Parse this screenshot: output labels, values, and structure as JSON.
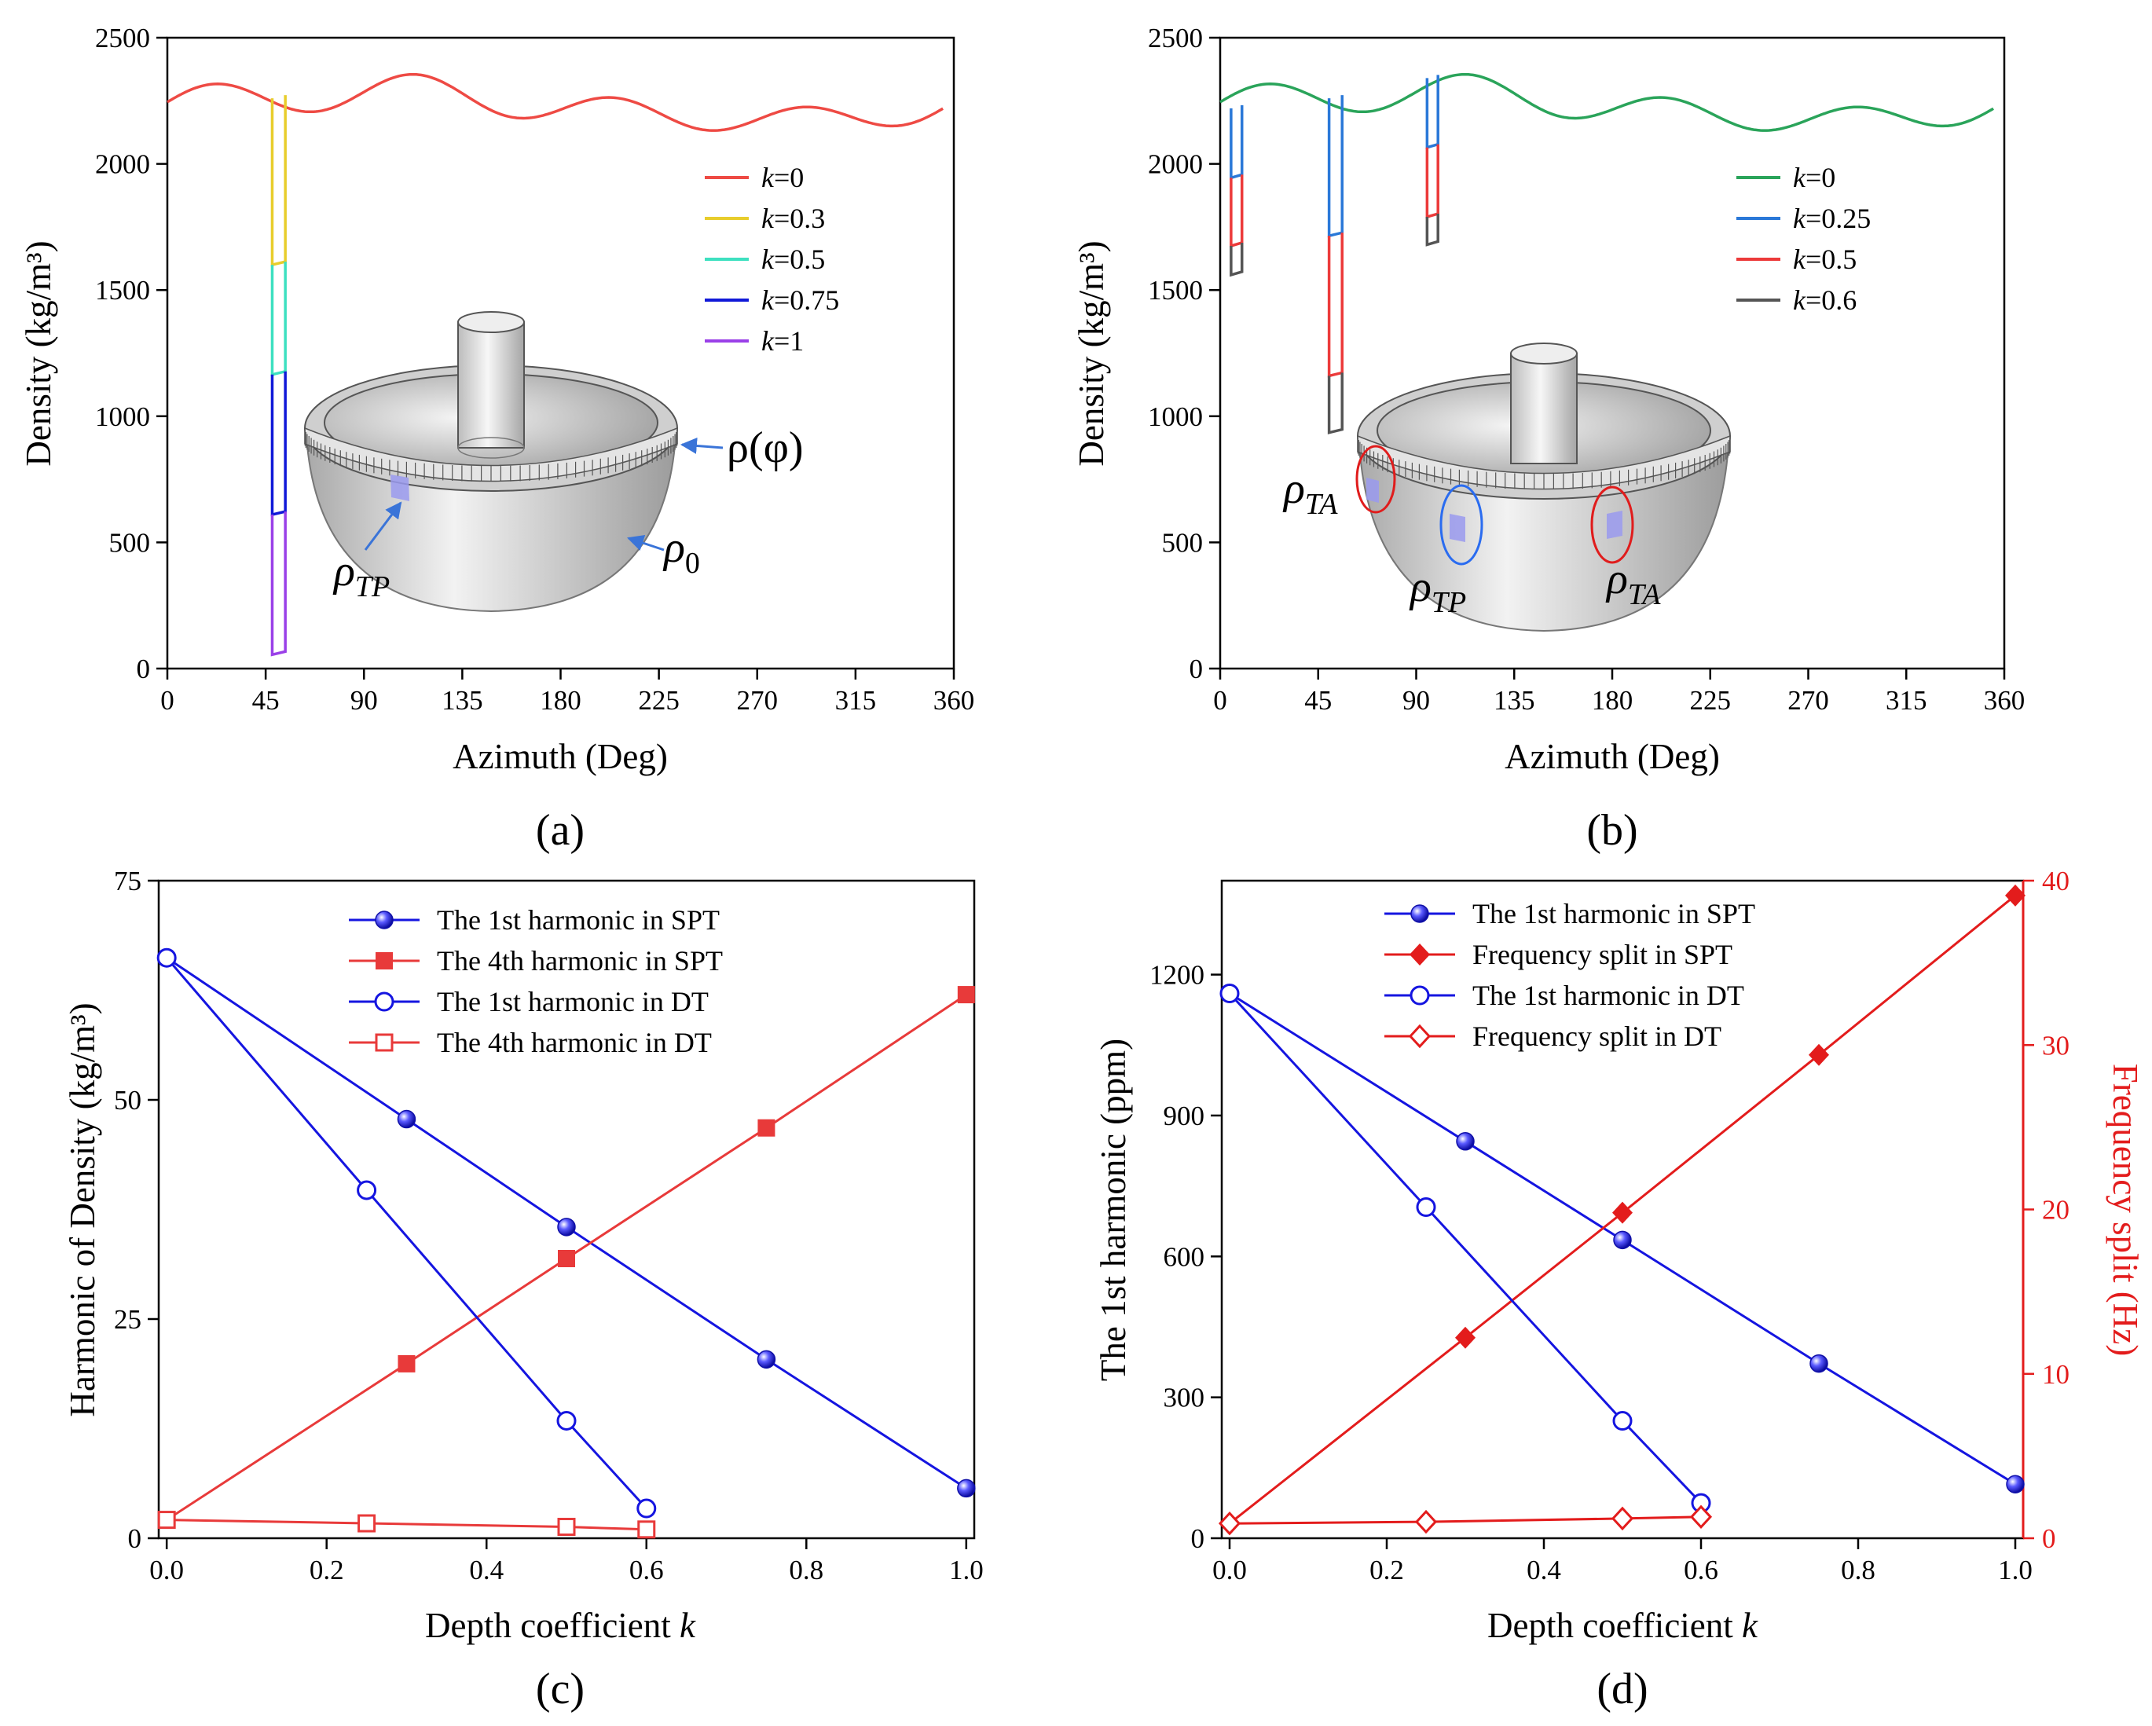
{
  "figure": {
    "captions": [
      "(a)",
      "(b)",
      "(c)",
      "(d)"
    ]
  },
  "colors": {
    "blue": "#1515e0",
    "red": "#e83a3a",
    "series_a": [
      "#ee4a44",
      "#e8cd2c",
      "#3de0c0",
      "#1019d8",
      "#9a40e8"
    ],
    "series_b": [
      "#2aa45a",
      "#2a78d8",
      "#ec3a3a",
      "#555555"
    ]
  },
  "chart_data": [
    {
      "id": "a",
      "type": "line",
      "xlabel": "Azimuth (Deg)",
      "ylabel": "Density (kg/m³)",
      "xlim": [
        0,
        360
      ],
      "ylim": [
        0,
        2500
      ],
      "xticks": [
        0,
        45,
        90,
        135,
        180,
        225,
        270,
        315,
        360
      ],
      "yticks": [
        0,
        500,
        1000,
        1500,
        2000,
        2500
      ],
      "baseline": {
        "mean": 2230,
        "terms": [
          [
            1,
            55,
            90
          ],
          [
            2,
            0,
            0
          ],
          [
            3,
            15,
            0
          ],
          [
            4,
            60,
            90
          ],
          [
            5,
            0,
            0
          ]
        ]
      },
      "series": [
        {
          "name": "k=0",
          "k": "0",
          "color": "#ee4a44",
          "dips": []
        },
        {
          "name": "k=0.3",
          "k": "0.3",
          "color": "#e8cd2c",
          "dips": [
            {
              "from": 48,
              "to": 54,
              "top": 2260,
              "bottom": 1600
            }
          ]
        },
        {
          "name": "k=0.5",
          "k": "0.5",
          "color": "#3de0c0",
          "dips": [
            {
              "from": 48,
              "to": 54,
              "top": 1600,
              "bottom": 1165
            }
          ]
        },
        {
          "name": "k=0.75",
          "k": "0.75",
          "color": "#1019d8",
          "dips": [
            {
              "from": 48,
              "to": 54,
              "top": 1165,
              "bottom": 610
            }
          ]
        },
        {
          "name": "k=1",
          "k": "1",
          "color": "#9a40e8",
          "dips": [
            {
              "from": 48,
              "to": 54,
              "top": 610,
              "bottom": 55
            }
          ]
        }
      ],
      "annotations": [
        "ρ(φ)",
        "ρ0",
        "ρTP"
      ]
    },
    {
      "id": "b",
      "type": "line",
      "xlabel": "Azimuth (Deg)",
      "ylabel": "Density (kg/m³)",
      "xlim": [
        0,
        360
      ],
      "ylim": [
        0,
        2500
      ],
      "xticks": [
        0,
        45,
        90,
        135,
        180,
        225,
        270,
        315,
        360
      ],
      "yticks": [
        0,
        500,
        1000,
        1500,
        2000,
        2500
      ],
      "baseline": {
        "mean": 2230,
        "terms": [
          [
            1,
            55,
            90
          ],
          [
            2,
            0,
            0
          ],
          [
            3,
            15,
            0
          ],
          [
            4,
            60,
            90
          ],
          [
            5,
            0,
            0
          ]
        ]
      },
      "series": [
        {
          "name": "k=0",
          "k": "0",
          "color": "#2aa45a",
          "dips": []
        },
        {
          "name": "k=0.25",
          "k": "0.25",
          "color": "#2a78d8",
          "dips": [
            {
              "from": 5,
              "to": 10,
              "top": 2220,
              "bottom": 1945
            },
            {
              "from": 50,
              "to": 56,
              "top": 2260,
              "bottom": 1715
            },
            {
              "from": 95,
              "to": 100,
              "top": 2340,
              "bottom": 2065
            }
          ]
        },
        {
          "name": "k=0.5",
          "k": "0.5",
          "color": "#ec3a3a",
          "dips": [
            {
              "from": 5,
              "to": 10,
              "top": 1945,
              "bottom": 1675
            },
            {
              "from": 50,
              "to": 56,
              "top": 1715,
              "bottom": 1160
            },
            {
              "from": 95,
              "to": 100,
              "top": 2065,
              "bottom": 1790
            }
          ]
        },
        {
          "name": "k=0.6",
          "k": "0.6",
          "color": "#555555",
          "dips": [
            {
              "from": 5,
              "to": 10,
              "top": 1675,
              "bottom": 1560
            },
            {
              "from": 50,
              "to": 56,
              "top": 1160,
              "bottom": 935
            },
            {
              "from": 95,
              "to": 100,
              "top": 1790,
              "bottom": 1680
            }
          ]
        }
      ],
      "annotations": [
        "ρTA",
        "ρTP",
        "ρTA"
      ]
    },
    {
      "id": "c",
      "type": "line",
      "xlabel": "Depth coefficient k",
      "ylabel": "Harmonic of Density (kg/m³)",
      "xlim": [
        -0.01,
        1.01
      ],
      "ylim": [
        0,
        75
      ],
      "xticks": [
        0.0,
        0.2,
        0.4,
        0.6,
        0.8,
        1.0
      ],
      "xtick_labels": [
        "0.0",
        "0.2",
        "0.4",
        "0.6",
        "0.8",
        "1.0"
      ],
      "yticks": [
        0,
        25,
        50,
        75
      ],
      "series": [
        {
          "name": "The 1st harmonic in SPT",
          "color": "#1515e0",
          "marker": "ball",
          "x": [
            0,
            0.3,
            0.5,
            0.75,
            1.0
          ],
          "y": [
            66.2,
            47.8,
            35.5,
            20.4,
            5.7
          ]
        },
        {
          "name": "The 4th harmonic in SPT",
          "color": "#e83a3a",
          "marker": "square",
          "x": [
            0,
            0.3,
            0.5,
            0.75,
            1.0
          ],
          "y": [
            2.1,
            19.9,
            31.9,
            46.8,
            62.0
          ]
        },
        {
          "name": "The 1st harmonic in DT",
          "color": "#1515e0",
          "marker": "circle-open",
          "x": [
            0,
            0.25,
            0.5,
            0.6
          ],
          "y": [
            66.2,
            39.7,
            13.4,
            3.4
          ]
        },
        {
          "name": "The 4th harmonic in DT",
          "color": "#e83a3a",
          "marker": "square-open",
          "x": [
            0,
            0.25,
            0.5,
            0.6
          ],
          "y": [
            2.1,
            1.7,
            1.3,
            1.0
          ]
        }
      ]
    },
    {
      "id": "d",
      "type": "line",
      "xlabel": "Depth coefficient k",
      "ylabel": "The 1st harmonic (ppm)",
      "ylabel_right": "Frequency split (Hz)",
      "xlim": [
        -0.01,
        1.01
      ],
      "ylim": [
        0,
        1400
      ],
      "ylim_right": [
        0,
        40
      ],
      "xticks": [
        0.0,
        0.2,
        0.4,
        0.6,
        0.8,
        1.0
      ],
      "xtick_labels": [
        "0.0",
        "0.2",
        "0.4",
        "0.6",
        "0.8",
        "1.0"
      ],
      "yticks": [
        0,
        300,
        600,
        900,
        1200
      ],
      "yticks_right": [
        0,
        10,
        20,
        30,
        40
      ],
      "series": [
        {
          "name": "The 1st harmonic in SPT",
          "color": "#1515e0",
          "marker": "ball",
          "axis": "left",
          "x": [
            0,
            0.3,
            0.5,
            0.75,
            1.0
          ],
          "y": [
            1160,
            845,
            635,
            372,
            115
          ]
        },
        {
          "name": "Frequency split in SPT",
          "color": "#e31c1c",
          "marker": "diamond",
          "axis": "right",
          "x": [
            0,
            0.3,
            0.5,
            0.75,
            1.0
          ],
          "y": [
            0.9,
            12.2,
            19.8,
            29.4,
            39.1
          ]
        },
        {
          "name": "The 1st harmonic in DT",
          "color": "#1515e0",
          "marker": "circle-open",
          "axis": "left",
          "x": [
            0,
            0.25,
            0.5,
            0.6
          ],
          "y": [
            1160,
            705,
            250,
            75
          ]
        },
        {
          "name": "Frequency split in DT",
          "color": "#e31c1c",
          "marker": "diamond-open",
          "axis": "right",
          "x": [
            0,
            0.25,
            0.5,
            0.6
          ],
          "y": [
            0.9,
            1.0,
            1.2,
            1.3
          ]
        }
      ]
    }
  ]
}
